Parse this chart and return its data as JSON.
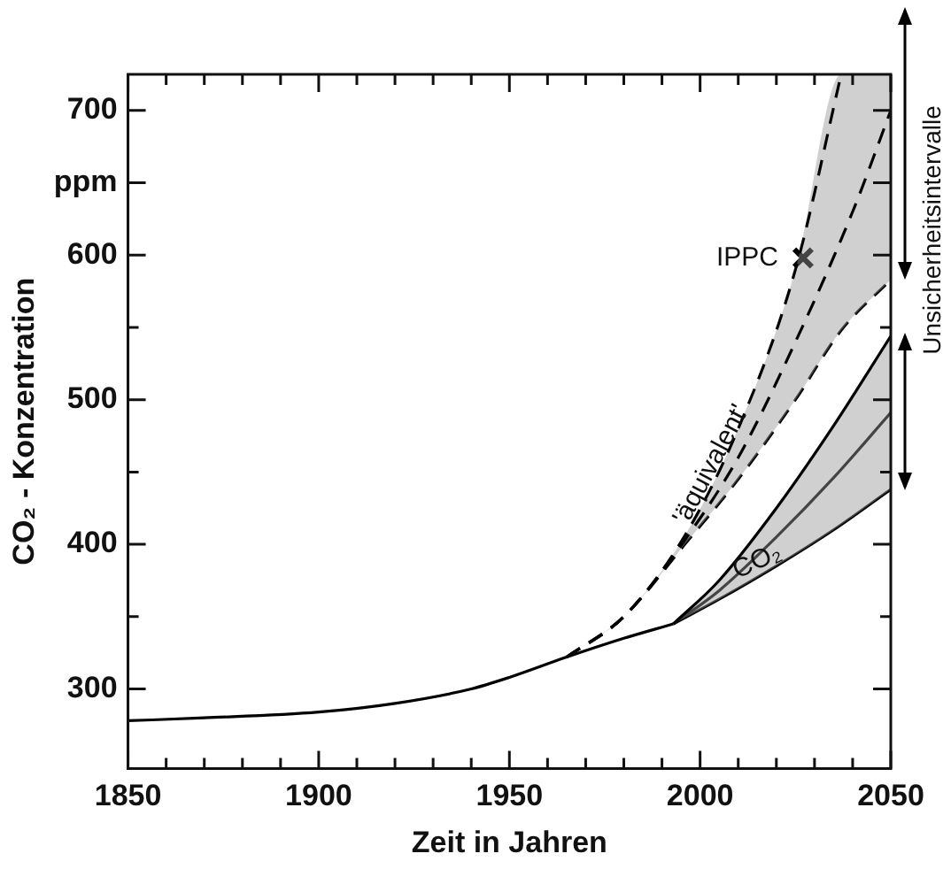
{
  "chart_data": {
    "type": "line",
    "xlabel": "Zeit in Jahren",
    "ylabel": "CO₂ - Konzentration",
    "xlim": [
      1850,
      2050
    ],
    "xticks": [
      1850,
      {
        "value": 1860,
        "label": null
      },
      {
        "value": 1870,
        "label": null
      },
      {
        "value": 1880,
        "label": null
      },
      {
        "value": 1890,
        "label": null
      },
      1900,
      {
        "value": 1910,
        "label": null
      },
      {
        "value": 1920,
        "label": null
      },
      {
        "value": 1930,
        "label": null
      },
      {
        "value": 1940,
        "label": null
      },
      1950,
      {
        "value": 1960,
        "label": null
      },
      {
        "value": 1970,
        "label": null
      },
      {
        "value": 1980,
        "label": null
      },
      {
        "value": 1990,
        "label": null
      },
      2000,
      {
        "value": 2010,
        "label": null
      },
      {
        "value": 2020,
        "label": null
      },
      {
        "value": 2030,
        "label": null
      },
      {
        "value": 2040,
        "label": null
      },
      2050
    ],
    "ylim": [
      245,
      725
    ],
    "yticks": [
      300,
      {
        "value": 350,
        "label": null
      },
      400,
      {
        "value": 450,
        "label": null
      },
      500,
      {
        "value": 550,
        "label": null
      },
      600,
      {
        "value": 650,
        "label": "ppm"
      },
      700
    ],
    "grid": false,
    "legend": false,
    "marker": "none",
    "series": [
      {
        "color": "#000000",
        "line_style": "solid",
        "x": [
          1850,
          1870,
          1900,
          1920,
          1940,
          1950,
          1965,
          1980,
          1993
        ],
        "values": [
          278,
          280,
          284,
          290,
          300,
          308,
          322,
          335,
          345
        ]
      },
      {
        "color": "#000000",
        "line_style": "solid",
        "x": [
          1993,
          2005,
          2020,
          2035,
          2050
        ],
        "values": [
          345,
          375,
          425,
          482,
          544
        ]
      },
      {
        "color": "#000000",
        "line_style": "solid",
        "x": [
          1993,
          2005,
          2020,
          2035,
          2050
        ],
        "values": [
          345,
          368,
          405,
          446,
          491
        ],
        "lower": [
          345,
          362,
          385,
          410,
          438
        ],
        "upper": [
          345,
          375,
          425,
          482,
          544
        ]
      },
      {
        "color": "#000000",
        "line_style": "solid",
        "x": [
          1993,
          2005,
          2020,
          2035,
          2050
        ],
        "values": [
          345,
          362,
          385,
          410,
          438
        ]
      },
      {
        "color": "#000000",
        "line_style": "dashed",
        "x": [
          1965,
          1980,
          1996,
          2010,
          2025,
          2037
        ],
        "values": [
          322,
          350,
          406,
          480,
          590,
          725
        ]
      },
      {
        "color": "#000000",
        "line_style": "dashed",
        "x": [
          1965,
          1980,
          1996,
          2010,
          2025,
          2040,
          2050
        ],
        "values": [
          322,
          350,
          403,
          460,
          540,
          630,
          700
        ]
      },
      {
        "color": "#000000",
        "line_style": "dashed",
        "x": [
          1965,
          1980,
          1996,
          2010,
          2025,
          2037,
          2050
        ],
        "values": [
          322,
          350,
          400,
          445,
          500,
          548,
          583
        ],
        "lower": [
          322,
          350,
          400,
          445,
          500,
          548,
          583
        ],
        "upper": [
          322,
          350,
          406,
          480,
          590,
          725,
          725
        ]
      },
      {
        "type": "scatter",
        "marker": "cross",
        "color": "#000000",
        "x": [
          2027
        ],
        "values": [
          598
        ]
      }
    ],
    "annotations": [
      {
        "text": "'äquivalent'",
        "x": 2003,
        "y": 455
      },
      {
        "text": "IPPC",
        "x": 2027,
        "y": 598
      },
      {
        "text": "CO₂",
        "x": 2015,
        "y": 388
      },
      "Unsicherheitsintervalle"
    ]
  }
}
